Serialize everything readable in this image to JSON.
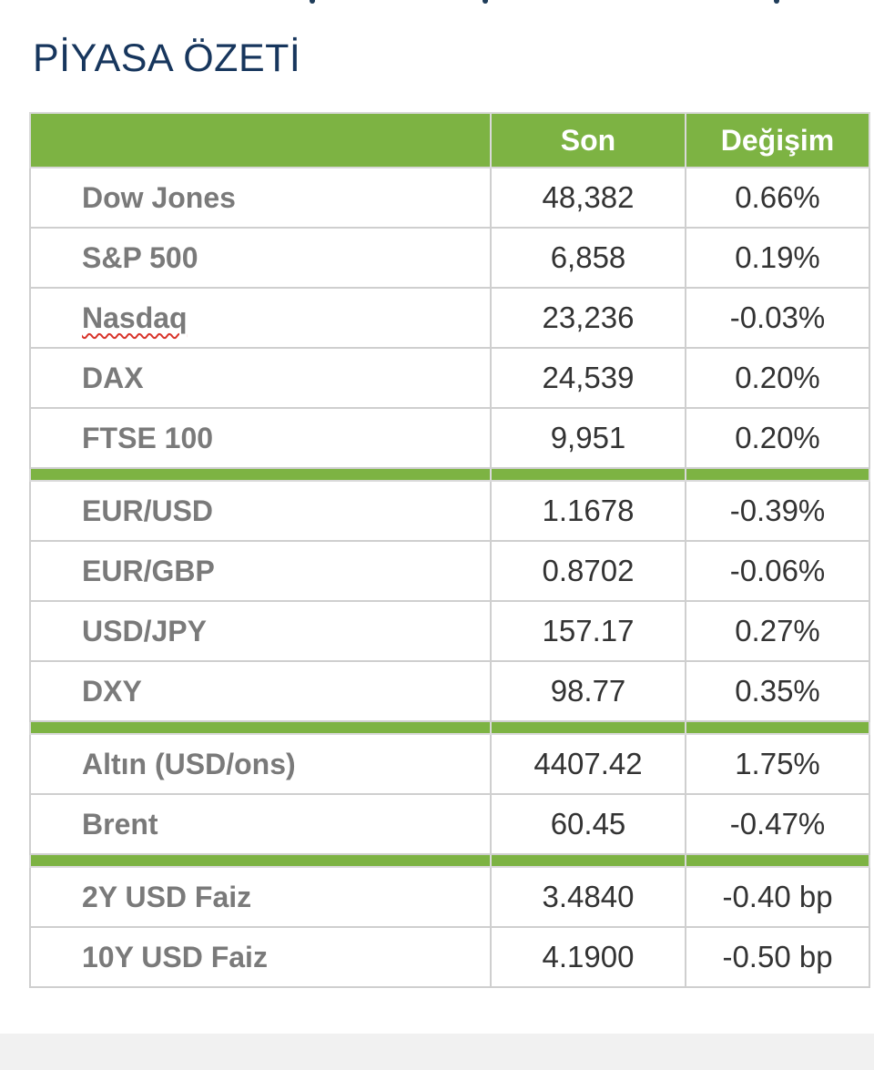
{
  "title": "PİYASA ÖZETİ",
  "table": {
    "headers": [
      "",
      "Son",
      "Değişim"
    ],
    "groups": [
      {
        "rows": [
          {
            "name": "Dow Jones",
            "last": "48,382",
            "change": "0.66%"
          },
          {
            "name": "S&P 500",
            "last": "6,858",
            "change": "0.19%"
          },
          {
            "name": "Nasdaq",
            "last": "23,236",
            "change": "-0.03%"
          },
          {
            "name": "DAX",
            "last": "24,539",
            "change": "0.20%"
          },
          {
            "name": "FTSE 100",
            "last": "9,951",
            "change": "0.20%"
          }
        ]
      },
      {
        "rows": [
          {
            "name": "EUR/USD",
            "last": "1.1678",
            "change": "-0.39%"
          },
          {
            "name": "EUR/GBP",
            "last": "0.8702",
            "change": "-0.06%"
          },
          {
            "name": "USD/JPY",
            "last": "157.17",
            "change": "0.27%"
          },
          {
            "name": "DXY",
            "last": "98.77",
            "change": "0.35%"
          }
        ]
      },
      {
        "rows": [
          {
            "name": "Altın (USD/ons)",
            "last": "4407.42",
            "change": "1.75%"
          },
          {
            "name": "Brent",
            "last": "60.45",
            "change": "-0.47%"
          }
        ]
      },
      {
        "rows": [
          {
            "name": "2Y USD Faiz",
            "last": "3.4840",
            "change": "-0.40 bp"
          },
          {
            "name": "10Y USD Faiz",
            "last": "4.1900",
            "change": "-0.50 bp"
          }
        ]
      }
    ]
  },
  "colors": {
    "header_green": "#7db343",
    "title_blue": "#17365d",
    "label_gray": "#7a7a7a",
    "grid_gray": "#cfcfcf"
  }
}
